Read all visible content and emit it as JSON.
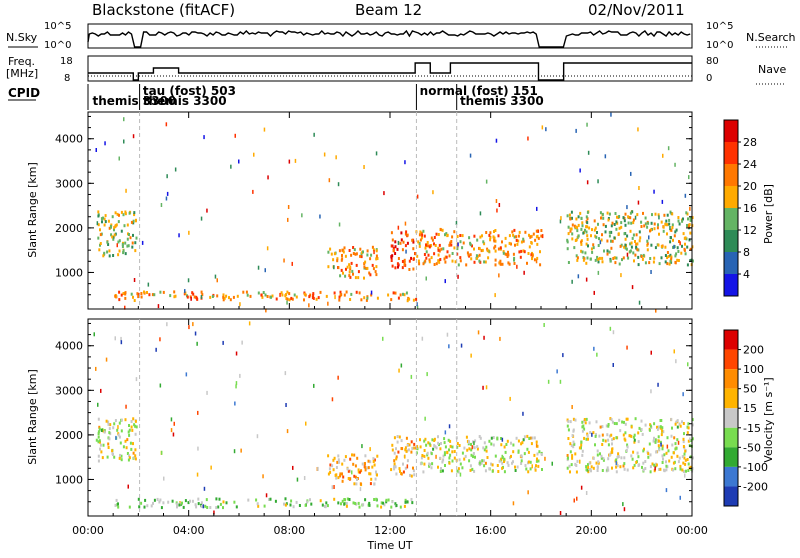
{
  "header": {
    "radar": "Blackstone (fitACF)",
    "beam": "Beam 12",
    "date": "02/Nov/2011"
  },
  "summary_panels": {
    "nsky_label": "N.Sky",
    "nsky_ticks": [
      "10^5",
      "10^0"
    ],
    "nsearch_label": "N.Search",
    "nsearch_ticks": [
      "10^5",
      "10^0"
    ],
    "freq_label_line1": "Freq.",
    "freq_label_line2": "[MHz]",
    "freq_ticks": [
      "18",
      "8"
    ],
    "nave_label": "Nave",
    "nave_ticks": [
      "80",
      "0"
    ],
    "cpid_label": "CPID"
  },
  "cpid_modes": [
    {
      "text": "themis 3300",
      "time_h": 0.1,
      "row": 1
    },
    {
      "text": "tau (fost) 503",
      "time_h": 2.1,
      "row": 0
    },
    {
      "text": "themis 3300",
      "time_h": 2.1,
      "row": 1
    },
    {
      "text": "normal (fost) 151",
      "time_h": 13.1,
      "row": 0
    },
    {
      "text": "themis 3300",
      "time_h": 14.7,
      "row": 1
    }
  ],
  "cpid_change_times_h": [
    2.05,
    13.05,
    14.65
  ],
  "power_panel": {
    "ylabel": "Slant Range [km]",
    "yticks": [
      "4000",
      "3000",
      "2000",
      "1000"
    ],
    "colorbar_label": "Power [dB]",
    "colorbar_ticks": [
      "28",
      "24",
      "20",
      "16",
      "12",
      "8",
      "4"
    ],
    "colors": [
      "#1414e6",
      "#2864b4",
      "#2e8b57",
      "#64b464",
      "#ffaa00",
      "#ff7800",
      "#ff3200",
      "#dc0000"
    ]
  },
  "velocity_panel": {
    "ylabel": "Slant Range [km]",
    "yticks": [
      "4000",
      "3000",
      "2000",
      "1000"
    ],
    "colorbar_label": "Velocity [m s⁻¹]",
    "colorbar_ticks": [
      "200",
      "100",
      "50",
      "15",
      "-15",
      "-50",
      "-100",
      "-200"
    ],
    "colors": [
      "#1e3cb4",
      "#3c78d2",
      "#32aa32",
      "#78dc50",
      "#c8c8c8",
      "#ffb400",
      "#ff8c00",
      "#ff4600",
      "#dc0000"
    ]
  },
  "xaxis": {
    "label": "Time UT",
    "ticks": [
      "00:00",
      "04:00",
      "08:00",
      "12:00",
      "16:00",
      "20:00",
      "00:00"
    ]
  },
  "chart_data": {
    "type": "heatmap",
    "title": "Blackstone (fitACF)  Beam 12  02/Nov/2011",
    "xlabel": "Time UT",
    "ylabel": "Slant Range [km]",
    "xlim_hours": [
      0,
      24
    ],
    "ylim_km": [
      180,
      4600
    ],
    "grid": false,
    "panels": [
      {
        "name": "Power",
        "unit": "dB",
        "color_scale": [
          0,
          32
        ],
        "scatter_regions": [
          {
            "t_start_h": 0.3,
            "t_end_h": 1.9,
            "range_start_km": 1400,
            "range_end_km": 2400,
            "typical_value": 16
          },
          {
            "t_start_h": 9.5,
            "t_end_h": 11.5,
            "range_start_km": 900,
            "range_end_km": 1600,
            "typical_value": 20
          },
          {
            "t_start_h": 12.0,
            "t_end_h": 13.0,
            "range_start_km": 1100,
            "range_end_km": 2000,
            "typical_value": 26
          },
          {
            "t_start_h": 13.0,
            "t_end_h": 18.0,
            "range_start_km": 1200,
            "range_end_km": 2000,
            "typical_value": 20
          },
          {
            "t_start_h": 19.0,
            "t_end_h": 24.0,
            "range_start_km": 1200,
            "range_end_km": 2400,
            "typical_value": 16
          },
          {
            "t_start_h": 1.0,
            "t_end_h": 13.0,
            "range_start_km": 400,
            "range_end_km": 600,
            "typical_value": 20
          }
        ]
      },
      {
        "name": "Velocity",
        "unit": "m s-1",
        "color_scale": [
          -200,
          200
        ],
        "scatter_regions": [
          {
            "t_start_h": 0.3,
            "t_end_h": 1.9,
            "range_start_km": 1400,
            "range_end_km": 2400,
            "typical_value": 0
          },
          {
            "t_start_h": 9.5,
            "t_end_h": 11.5,
            "range_start_km": 900,
            "range_end_km": 1600,
            "typical_value": 60
          },
          {
            "t_start_h": 12.0,
            "t_end_h": 13.0,
            "range_start_km": 1100,
            "range_end_km": 2000,
            "typical_value": 50
          },
          {
            "t_start_h": 13.0,
            "t_end_h": 18.0,
            "range_start_km": 1200,
            "range_end_km": 2000,
            "typical_value": 0
          },
          {
            "t_start_h": 19.0,
            "t_end_h": 24.0,
            "range_start_km": 1200,
            "range_end_km": 2400,
            "typical_value": 0
          },
          {
            "t_start_h": 1.0,
            "t_end_h": 13.0,
            "range_start_km": 400,
            "range_end_km": 600,
            "typical_value": -40
          }
        ]
      }
    ]
  }
}
